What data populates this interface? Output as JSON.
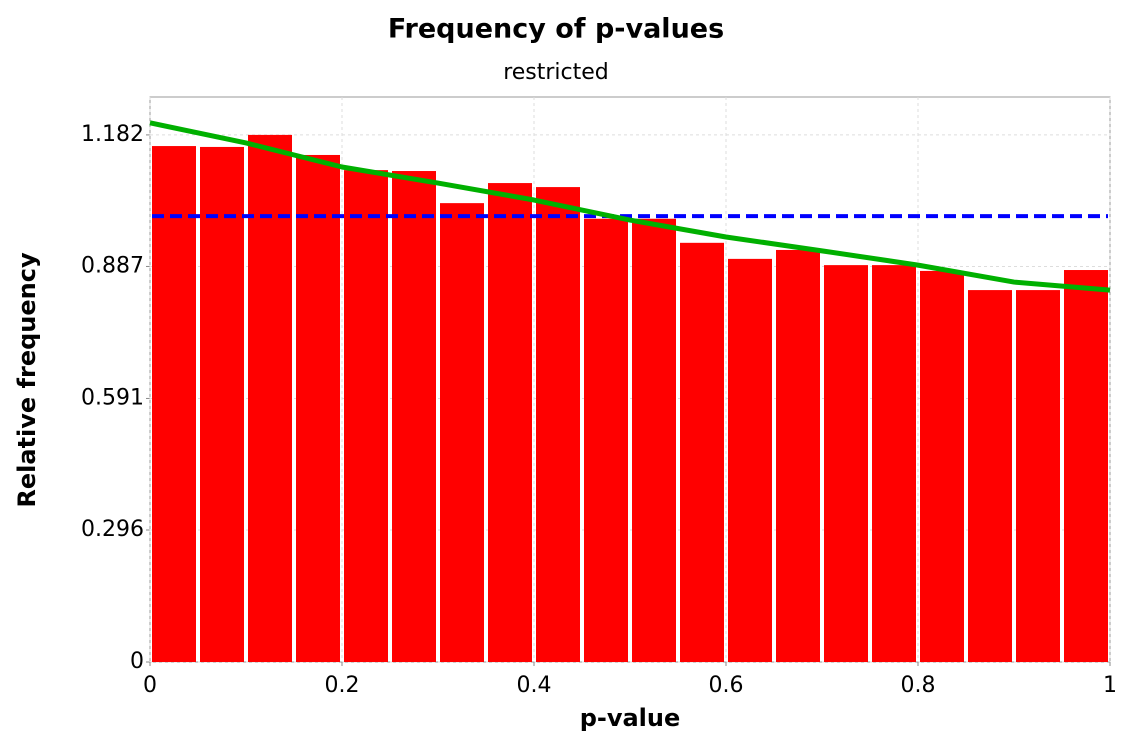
{
  "chart_data": {
    "type": "histogram",
    "title": "Frequency of p-values",
    "subtitle": "restricted",
    "x_label": "p-value",
    "y_label": "Relative frequency",
    "bins": [
      0,
      0.05,
      0.1,
      0.15,
      0.2,
      0.25,
      0.3,
      0.35,
      0.4,
      0.45,
      0.5,
      0.55,
      0.6,
      0.65,
      0.7,
      0.75,
      0.8,
      0.85,
      0.9,
      0.95,
      1
    ],
    "values": [
      1.157,
      1.155,
      1.182,
      1.137,
      1.103,
      1.101,
      1.029,
      1.074,
      1.065,
      0.994,
      0.994,
      0.94,
      0.904,
      0.924,
      0.89,
      0.89,
      0.877,
      0.834,
      0.834,
      0.879
    ],
    "color": "#ff0000",
    "reference_line": {
      "value": 1.0,
      "color": "#0000ff"
    },
    "fit_line": {
      "x": [
        0,
        0.1,
        0.2,
        0.3,
        0.4,
        0.5,
        0.6,
        0.7,
        0.8,
        0.9,
        1
      ],
      "values": [
        1.209,
        1.164,
        1.11,
        1.074,
        1.036,
        0.991,
        0.953,
        0.922,
        0.89,
        0.852,
        0.834
      ],
      "color": "#00b000"
    },
    "xlim": [
      0,
      1
    ],
    "ylim": [
      0,
      1.267
    ],
    "xticks": [
      0,
      0.2,
      0.4,
      0.6,
      0.8,
      1
    ],
    "yticks": [
      0,
      0.296,
      0.591,
      0.887,
      1.182
    ],
    "grid": true
  }
}
